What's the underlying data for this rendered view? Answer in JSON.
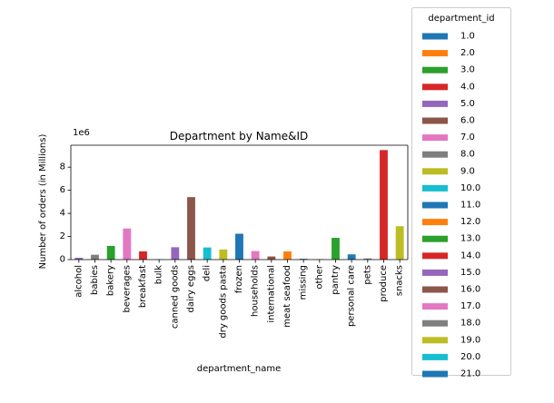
{
  "chart_data": {
    "type": "bar",
    "title": "Department by Name&ID",
    "xlabel": "department_name",
    "ylabel": "Number of orders (in Millions)",
    "offset_label": "1e6",
    "ylim": [
      0,
      9.9
    ],
    "yticks": [
      0,
      2,
      4,
      6,
      8
    ],
    "grid": false,
    "legend": {
      "title": "department_id",
      "placement": "outside-right"
    },
    "categories": [
      "alcohol",
      "babies",
      "bakery",
      "beverages",
      "breakfast",
      "bulk",
      "canned goods",
      "dairy eggs",
      "deli",
      "dry goods pasta",
      "frozen",
      "households",
      "international",
      "meat seafood",
      "missing",
      "other",
      "pantry",
      "personal care",
      "pets",
      "produce",
      "snacks"
    ],
    "series": [
      {
        "name": "1.0",
        "color": "#1f77b4",
        "category": "frozen",
        "value": 2.24
      },
      {
        "name": "2.0",
        "color": "#ff7f0e",
        "category": "other",
        "value": 0.04
      },
      {
        "name": "3.0",
        "color": "#2ca02c",
        "category": "bakery",
        "value": 1.18
      },
      {
        "name": "4.0",
        "color": "#d62728",
        "category": "produce",
        "value": 9.48
      },
      {
        "name": "5.0",
        "color": "#9467bd",
        "category": "alcohol",
        "value": 0.16
      },
      {
        "name": "6.0",
        "color": "#8c564b",
        "category": "international",
        "value": 0.27
      },
      {
        "name": "7.0",
        "color": "#e377c2",
        "category": "beverages",
        "value": 2.69
      },
      {
        "name": "8.0",
        "color": "#7f7f7f",
        "category": "pets",
        "value": 0.1
      },
      {
        "name": "9.0",
        "color": "#bcbd22",
        "category": "dry goods pasta",
        "value": 0.87
      },
      {
        "name": "10.0",
        "color": "#17becf",
        "category": "bulk",
        "value": 0.03
      },
      {
        "name": "11.0",
        "color": "#1f77b4",
        "category": "personal care",
        "value": 0.45
      },
      {
        "name": "12.0",
        "color": "#ff7f0e",
        "category": "meat seafood",
        "value": 0.71
      },
      {
        "name": "13.0",
        "color": "#2ca02c",
        "category": "pantry",
        "value": 1.88
      },
      {
        "name": "14.0",
        "color": "#d62728",
        "category": "breakfast",
        "value": 0.71
      },
      {
        "name": "15.0",
        "color": "#9467bd",
        "category": "canned goods",
        "value": 1.07
      },
      {
        "name": "16.0",
        "color": "#8c564b",
        "category": "dairy eggs",
        "value": 5.41
      },
      {
        "name": "17.0",
        "color": "#e377c2",
        "category": "households",
        "value": 0.74
      },
      {
        "name": "18.0",
        "color": "#7f7f7f",
        "category": "babies",
        "value": 0.42
      },
      {
        "name": "19.0",
        "color": "#bcbd22",
        "category": "snacks",
        "value": 2.89
      },
      {
        "name": "20.0",
        "color": "#17becf",
        "category": "deli",
        "value": 1.05
      },
      {
        "name": "21.0",
        "color": "#1f77b4",
        "category": "missing",
        "value": 0.07
      }
    ]
  }
}
